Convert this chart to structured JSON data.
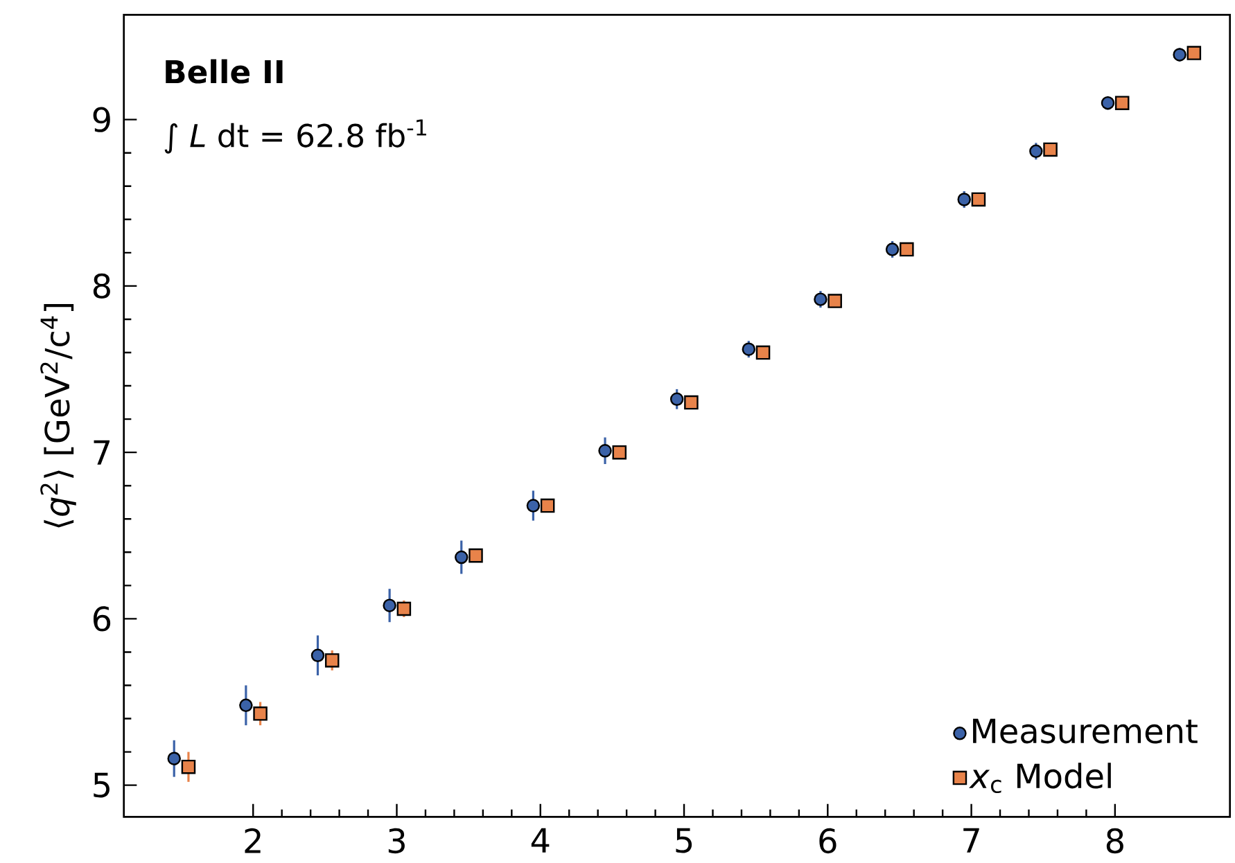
{
  "chart_data": {
    "type": "scatter",
    "ylabel": "⟨*q*$^{2}$⟩ [GeV$^{2}$/c$^{4}$]",
    "annotations": [
      "Belle II",
      "∫ *L* dt = 62.8 fb$^{-1}$"
    ],
    "xlim": [
      1.1,
      8.8
    ],
    "xticks": [
      2,
      3,
      4,
      5,
      6,
      7,
      8
    ],
    "ylim": [
      4.81,
      9.63
    ],
    "yticks": [
      5,
      6,
      7,
      8,
      9
    ],
    "legend": "bottom right",
    "series": [
      {
        "name": "Measurement",
        "color": "#3b62a8",
        "marker": "circle",
        "x": [
          1.45,
          1.95,
          2.45,
          2.95,
          3.45,
          3.95,
          4.45,
          4.95,
          5.45,
          5.95,
          6.45,
          6.95,
          7.45,
          7.95,
          8.45
        ],
        "values": [
          5.16,
          5.48,
          5.78,
          6.08,
          6.37,
          6.68,
          7.01,
          7.32,
          7.62,
          7.92,
          8.22,
          8.52,
          8.81,
          9.1,
          9.39
        ],
        "errors": [
          0.11,
          0.12,
          0.12,
          0.1,
          0.1,
          0.09,
          0.08,
          0.06,
          0.05,
          0.05,
          0.05,
          0.05,
          0.05,
          0.04,
          0.04
        ]
      },
      {
        "name": "*x*$_{c}$ Model",
        "color": "#e8834a",
        "marker": "square",
        "x": [
          1.55,
          2.05,
          2.55,
          3.05,
          3.55,
          4.05,
          4.55,
          5.05,
          5.55,
          6.05,
          6.55,
          7.05,
          7.55,
          8.05,
          8.55
        ],
        "values": [
          5.11,
          5.43,
          5.75,
          6.06,
          6.38,
          6.68,
          7.0,
          7.3,
          7.6,
          7.91,
          8.22,
          8.52,
          8.82,
          9.1,
          9.4
        ],
        "errors": [
          0.09,
          0.07,
          0.06,
          0.05,
          0.04,
          0.03,
          0.03,
          0.03,
          0.02,
          0.02,
          0.02,
          0.02,
          0.02,
          0.02,
          0.02
        ]
      }
    ]
  }
}
